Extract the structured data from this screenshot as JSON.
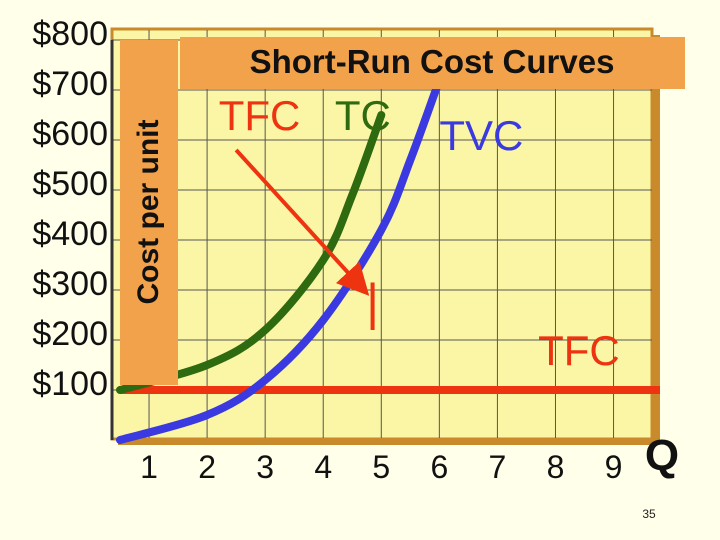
{
  "slide": {
    "page_number": "35"
  },
  "chart_data": {
    "type": "line",
    "title": "Short-Run Cost Curves",
    "ylabel": "Cost per unit",
    "xlabel": "Q",
    "x_ticks": [
      "1",
      "2",
      "3",
      "4",
      "5",
      "6",
      "7",
      "8",
      "9"
    ],
    "y_ticks": [
      "$800",
      "$700",
      "$600",
      "$500",
      "$400",
      "$300",
      "$200",
      "$100"
    ],
    "xlim": [
      0.5,
      9.8
    ],
    "ylim": [
      0,
      800
    ],
    "grid": true,
    "series": [
      {
        "name": "TFC",
        "color": "#ee3311",
        "x": [
          0.5,
          9.8
        ],
        "y": [
          100,
          100
        ]
      },
      {
        "name": "TVC",
        "color": "#3a3ae0",
        "x": [
          0.5,
          2,
          3,
          4,
          5,
          5.5,
          6
        ],
        "y": [
          0,
          50,
          120,
          240,
          420,
          560,
          720
        ]
      },
      {
        "name": "TC",
        "color": "#2e6a10",
        "x": [
          0.5,
          2,
          3,
          4,
          4.5,
          5
        ],
        "y": [
          100,
          150,
          220,
          360,
          490,
          650
        ]
      }
    ],
    "annotations": [
      {
        "label": "TFC",
        "x": 2.2,
        "y": 620,
        "anchor": "start"
      },
      {
        "label": "TC",
        "x": 4.2,
        "y": 620,
        "anchor": "start"
      },
      {
        "label": "TVC",
        "x": 6.0,
        "y": 580,
        "anchor": "start"
      },
      {
        "label": "TFC",
        "x": 7.7,
        "y": 150,
        "anchor": "start"
      }
    ],
    "arrow": {
      "label_ref": "TFC",
      "from": [
        2.5,
        580
      ],
      "to": [
        4.7,
        300
      ],
      "color": "#ee3311"
    },
    "gap_marker": {
      "x": 4.85,
      "y_from": 220,
      "y_to": 315,
      "color": "#ee3311"
    }
  }
}
